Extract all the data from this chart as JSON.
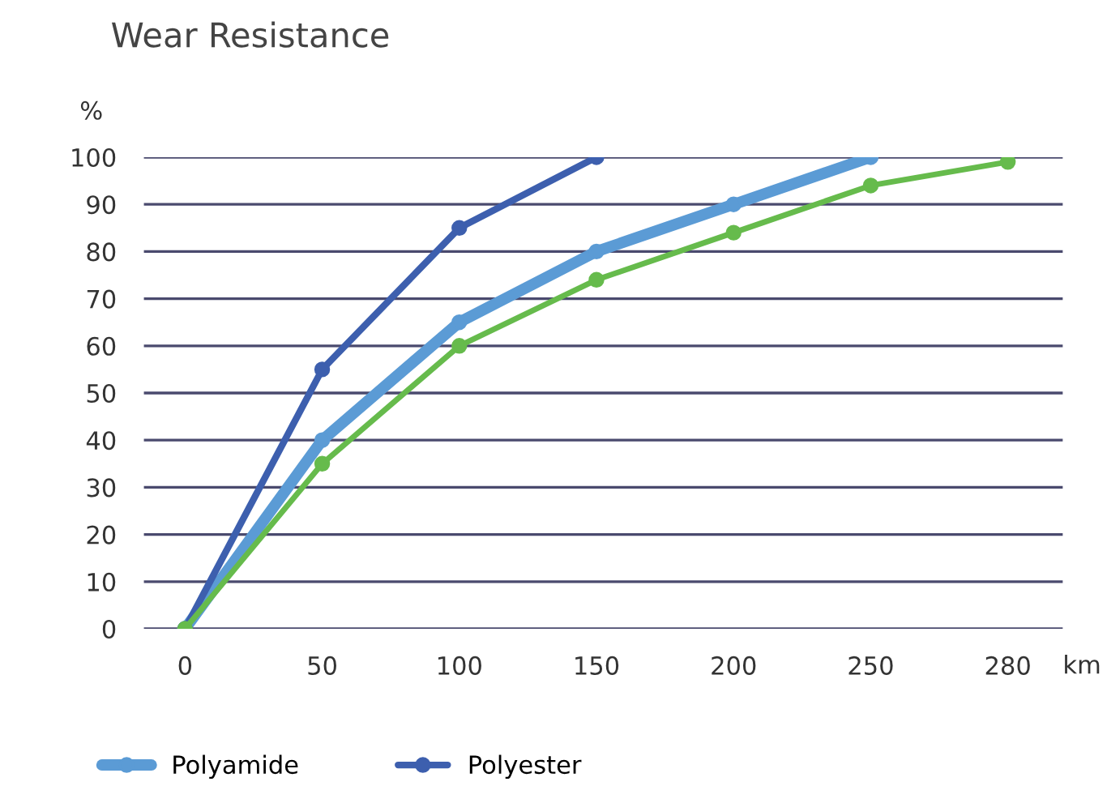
{
  "chart_data": {
    "type": "line",
    "title": "Wear Resistance",
    "ylabel": "%",
    "xlabel": "km",
    "categories": [
      "0",
      "50",
      "100",
      "150",
      "200",
      "250",
      "280"
    ],
    "series": [
      {
        "name": "Polyamide",
        "color": "#5b9bd5",
        "values": [
          0,
          40,
          65,
          80,
          90,
          100,
          null
        ]
      },
      {
        "name": "Polyester",
        "color": "#3d5fae",
        "values": [
          0,
          55,
          85,
          100,
          null,
          null,
          null
        ]
      },
      {
        "color": "#66bb4c",
        "values": [
          0,
          35,
          60,
          74,
          84,
          94,
          99
        ]
      }
    ],
    "ylim": [
      0,
      100
    ],
    "yticks": [
      0,
      10,
      20,
      30,
      40,
      50,
      60,
      70,
      80,
      90,
      100
    ],
    "grid": "y",
    "legend": "bottom",
    "marker": "circle",
    "line_style": "solid"
  }
}
